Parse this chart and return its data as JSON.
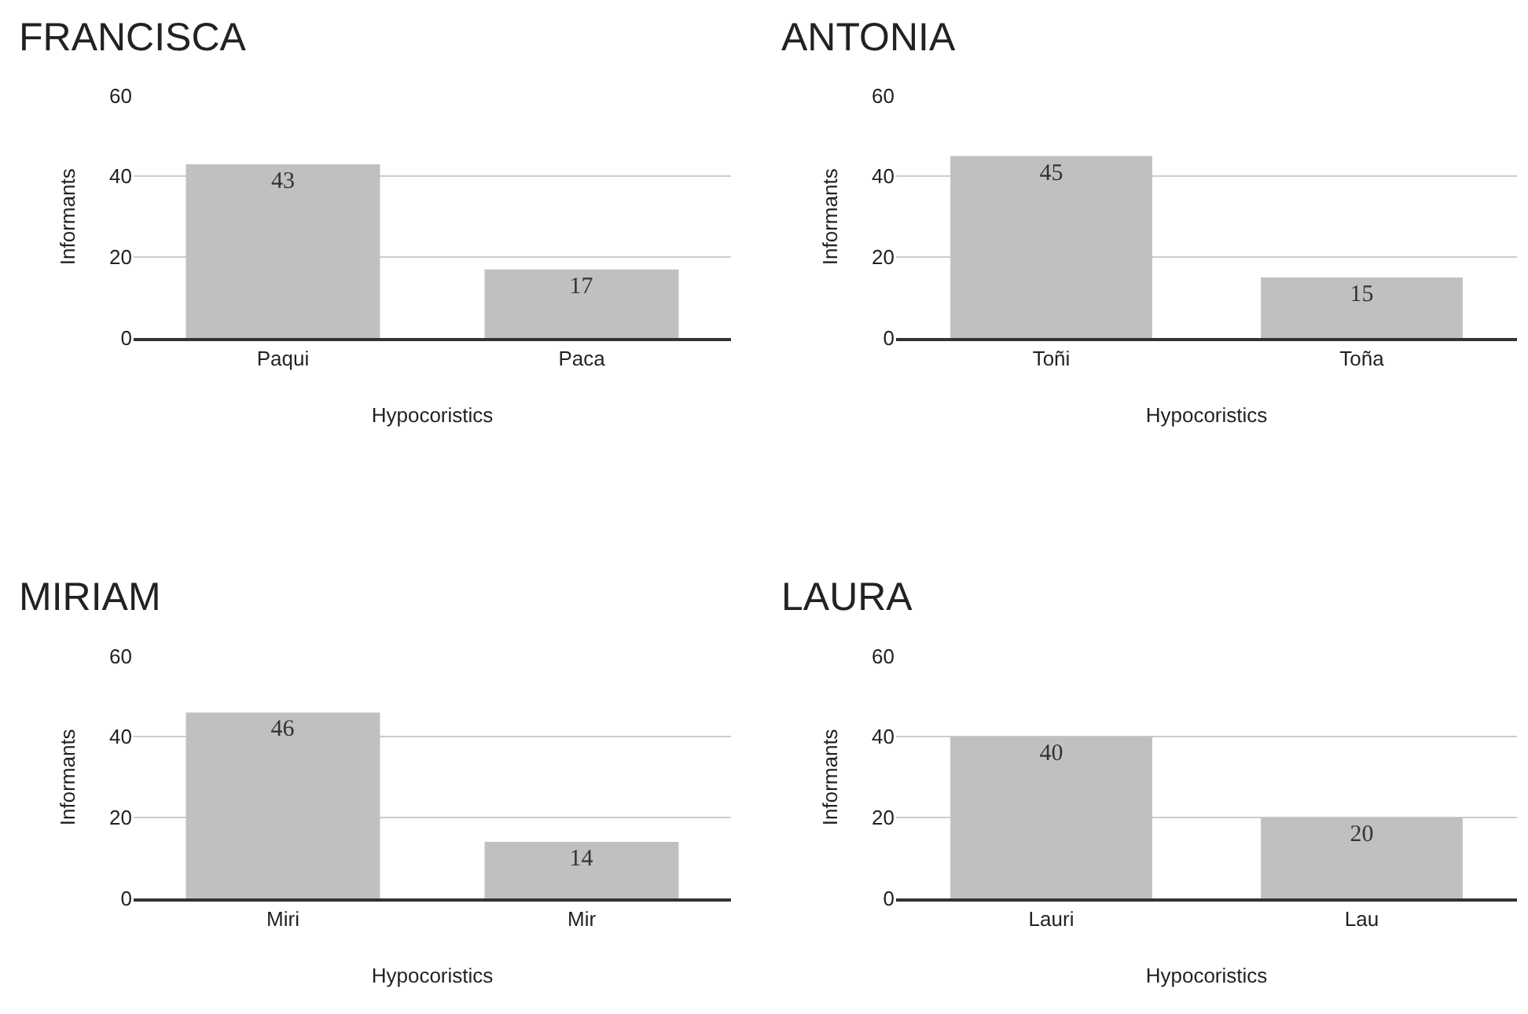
{
  "chart_data": [
    {
      "type": "bar",
      "title": "FRANCISCA",
      "xlabel": "Hypocoristics",
      "ylabel": "Informants",
      "categories": [
        "Paqui",
        "Paca"
      ],
      "values": [
        43,
        17
      ],
      "color": "#c0c0c0",
      "ylim": [
        0,
        60
      ],
      "yticks": [
        0,
        20,
        40,
        60
      ],
      "grid": "y",
      "data_labels": true
    },
    {
      "type": "bar",
      "title": "ANTONIA",
      "xlabel": "Hypocoristics",
      "ylabel": "Informants",
      "categories": [
        "Toñi",
        "Toña"
      ],
      "values": [
        45,
        15
      ],
      "color": "#c0c0c0",
      "ylim": [
        0,
        60
      ],
      "yticks": [
        0,
        20,
        40,
        60
      ],
      "grid": "y",
      "data_labels": true
    },
    {
      "type": "bar",
      "title": "MIRIAM",
      "xlabel": "Hypocoristics",
      "ylabel": "Informants",
      "categories": [
        "Miri",
        "Mir"
      ],
      "values": [
        46,
        14
      ],
      "color": "#c0c0c0",
      "ylim": [
        0,
        60
      ],
      "yticks": [
        0,
        20,
        40,
        60
      ],
      "grid": "y",
      "data_labels": true
    },
    {
      "type": "bar",
      "title": "LAURA",
      "xlabel": "Hypocoristics",
      "ylabel": "Informants",
      "categories": [
        "Lauri",
        "Lau"
      ],
      "values": [
        40,
        20
      ],
      "color": "#c0c0c0",
      "ylim": [
        0,
        60
      ],
      "yticks": [
        0,
        20,
        40,
        60
      ],
      "grid": "y",
      "data_labels": true
    }
  ]
}
